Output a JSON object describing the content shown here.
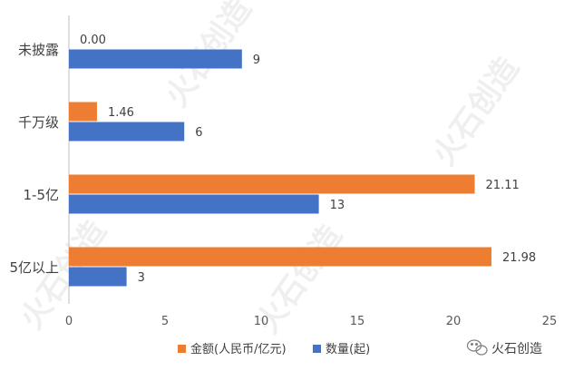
{
  "chart_data": {
    "type": "bar",
    "orientation": "horizontal",
    "categories": [
      "未披露",
      "千万级",
      "1-5亿",
      "5亿以上"
    ],
    "series": [
      {
        "name": "金额(人民币/亿元)",
        "color": "#ED7D31",
        "values": [
          0.0,
          1.46,
          21.11,
          21.98
        ],
        "labels": [
          "0.00",
          "1.46",
          "21.11",
          "21.98"
        ]
      },
      {
        "name": "数量(起)",
        "color": "#4472C4",
        "values": [
          9,
          6,
          13,
          3
        ],
        "labels": [
          "9",
          "6",
          "13",
          "3"
        ]
      }
    ],
    "xlim": [
      0,
      25
    ],
    "xticks": [
      "0",
      "5",
      "10",
      "15",
      "20",
      "25"
    ],
    "grid": false,
    "legend_position": "bottom"
  },
  "watermark": {
    "brand": "火石创造",
    "icon": "wechat-icon"
  }
}
